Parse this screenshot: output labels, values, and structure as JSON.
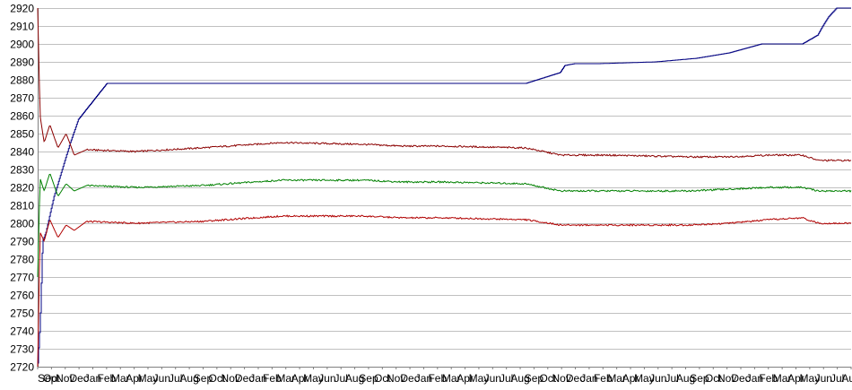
{
  "chart_data": {
    "type": "line",
    "title": "",
    "xlabel": "",
    "ylabel": "",
    "ylim": [
      2720,
      2920
    ],
    "yticks": [
      2720,
      2730,
      2740,
      2750,
      2760,
      2770,
      2780,
      2790,
      2800,
      2810,
      2820,
      2830,
      2840,
      2850,
      2860,
      2870,
      2880,
      2890,
      2900,
      2910,
      2920
    ],
    "grid": true,
    "legend": "none",
    "x_tick_labels": [
      "Sep",
      "Oct",
      "Nov",
      "Dec",
      "Jan",
      "Feb",
      "Mar",
      "Apr",
      "May",
      "Jun",
      "Jul",
      "Aug"
    ],
    "x_tick_count": 60,
    "colors": {
      "grid": "#c0c0c0",
      "axis": "#808080"
    },
    "series": [
      {
        "color": "#000080",
        "x": [
          0.0,
          0.003,
          0.006,
          0.01,
          0.02,
          0.03,
          0.04,
          0.05,
          0.085,
          0.3,
          0.6,
          0.642,
          0.648,
          0.66,
          0.69,
          0.76,
          0.81,
          0.85,
          0.89,
          0.92,
          0.94,
          0.959,
          0.965,
          0.972,
          0.982,
          0.99,
          1.0
        ],
        "values": [
          2722,
          2745,
          2790,
          2795,
          2815,
          2830,
          2845,
          2858,
          2878,
          2878,
          2878,
          2884,
          2888,
          2889,
          2889,
          2890,
          2892,
          2895,
          2900,
          2900,
          2900,
          2905,
          2910,
          2915,
          2920,
          2920,
          2920
        ]
      },
      {
        "color": "#8b0000",
        "x": [
          0.0,
          0.003,
          0.008,
          0.015,
          0.025,
          0.035,
          0.045,
          0.06,
          0.12,
          0.2,
          0.3,
          0.4,
          0.45,
          0.5,
          0.6,
          0.643,
          0.7,
          0.8,
          0.85,
          0.9,
          0.94,
          0.96,
          0.97,
          1.0
        ],
        "values": [
          2920,
          2860,
          2845,
          2855,
          2842,
          2850,
          2838,
          2841,
          2840,
          2842,
          2845,
          2844,
          2843,
          2843,
          2842,
          2838,
          2838,
          2837,
          2837,
          2838,
          2838,
          2835,
          2835,
          2835
        ]
      },
      {
        "color": "#008000",
        "x": [
          0.0,
          0.003,
          0.008,
          0.015,
          0.025,
          0.035,
          0.045,
          0.06,
          0.12,
          0.2,
          0.3,
          0.4,
          0.45,
          0.5,
          0.6,
          0.643,
          0.7,
          0.8,
          0.85,
          0.9,
          0.94,
          0.96,
          0.97,
          1.0
        ],
        "values": [
          2770,
          2825,
          2818,
          2828,
          2815,
          2822,
          2818,
          2821,
          2820,
          2821,
          2824,
          2824,
          2823,
          2823,
          2822,
          2818,
          2818,
          2818,
          2819,
          2820,
          2820,
          2818,
          2818,
          2818
        ]
      },
      {
        "color": "#b00000",
        "x": [
          0.0,
          0.003,
          0.008,
          0.015,
          0.025,
          0.035,
          0.045,
          0.06,
          0.12,
          0.2,
          0.3,
          0.4,
          0.45,
          0.5,
          0.6,
          0.643,
          0.7,
          0.8,
          0.85,
          0.9,
          0.94,
          0.96,
          0.97,
          1.0
        ],
        "values": [
          2720,
          2795,
          2790,
          2802,
          2792,
          2799,
          2796,
          2801,
          2800,
          2801,
          2804,
          2804,
          2803,
          2803,
          2802,
          2799,
          2799,
          2799,
          2800,
          2802,
          2803,
          2800,
          2800,
          2800
        ]
      }
    ]
  }
}
